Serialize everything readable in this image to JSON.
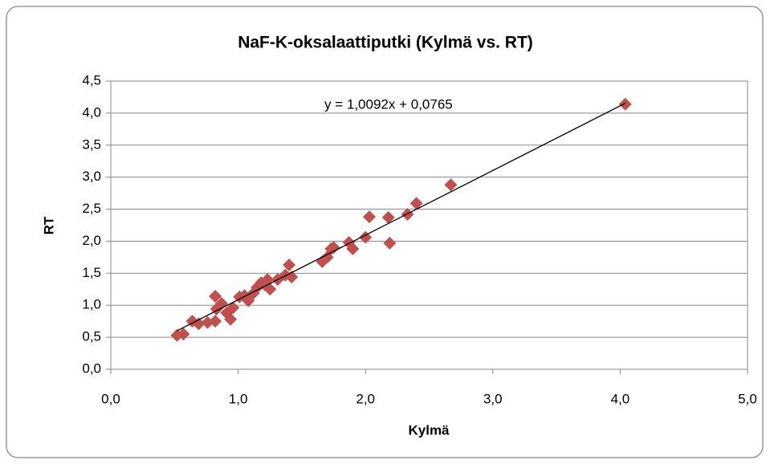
{
  "chart_data": {
    "type": "scatter",
    "title": "NaF-K-oksalaattiputki (Kylmä vs. RT)",
    "xlabel": "Kylmä",
    "ylabel": "RT",
    "series": [
      {
        "name": "RT",
        "color": "#c0504d",
        "x": [
          0.52,
          0.57,
          0.64,
          0.69,
          0.76,
          0.82,
          0.82,
          0.83,
          0.87,
          0.91,
          0.94,
          0.96,
          1.01,
          1.05,
          1.08,
          1.12,
          1.15,
          1.18,
          1.21,
          1.23,
          1.25,
          1.31,
          1.37,
          1.4,
          1.42,
          1.66,
          1.7,
          1.73,
          1.75,
          1.87,
          1.9,
          2.0,
          2.03,
          2.18,
          2.19,
          2.33,
          2.4,
          2.67,
          4.04
        ],
        "values": [
          0.53,
          0.55,
          0.75,
          0.71,
          0.73,
          1.14,
          0.75,
          0.94,
          1.03,
          0.88,
          0.78,
          0.96,
          1.13,
          1.15,
          1.07,
          1.19,
          1.28,
          1.35,
          1.32,
          1.4,
          1.25,
          1.4,
          1.47,
          1.63,
          1.44,
          1.68,
          1.75,
          1.88,
          1.9,
          1.98,
          1.88,
          2.06,
          2.38,
          2.37,
          1.97,
          2.42,
          2.59,
          2.88,
          4.14
        ]
      }
    ],
    "trendline": {
      "label": "y = 1,0092x + 0,0765",
      "slope": 1.0092,
      "intercept": 0.0765,
      "color": "#000000"
    },
    "xlim": [
      0,
      5
    ],
    "ylim": [
      0,
      4.5
    ],
    "xticks": [
      {
        "value": 0,
        "label": "0,0"
      },
      {
        "value": 1,
        "label": "1,0"
      },
      {
        "value": 2,
        "label": "2,0"
      },
      {
        "value": 3,
        "label": "3,0"
      },
      {
        "value": 4,
        "label": "4,0"
      },
      {
        "value": 5,
        "label": "5,0"
      }
    ],
    "yticks": [
      {
        "value": 0,
        "label": "0,0"
      },
      {
        "value": 0.5,
        "label": "0,5"
      },
      {
        "value": 1,
        "label": "1,0"
      },
      {
        "value": 1.5,
        "label": "1,5"
      },
      {
        "value": 2,
        "label": "2,0"
      },
      {
        "value": 2.5,
        "label": "2,5"
      },
      {
        "value": 3,
        "label": "3,0"
      },
      {
        "value": 3.5,
        "label": "3,5"
      },
      {
        "value": 4,
        "label": "4,0"
      },
      {
        "value": 4.5,
        "label": "4,5"
      }
    ],
    "grid": true
  }
}
